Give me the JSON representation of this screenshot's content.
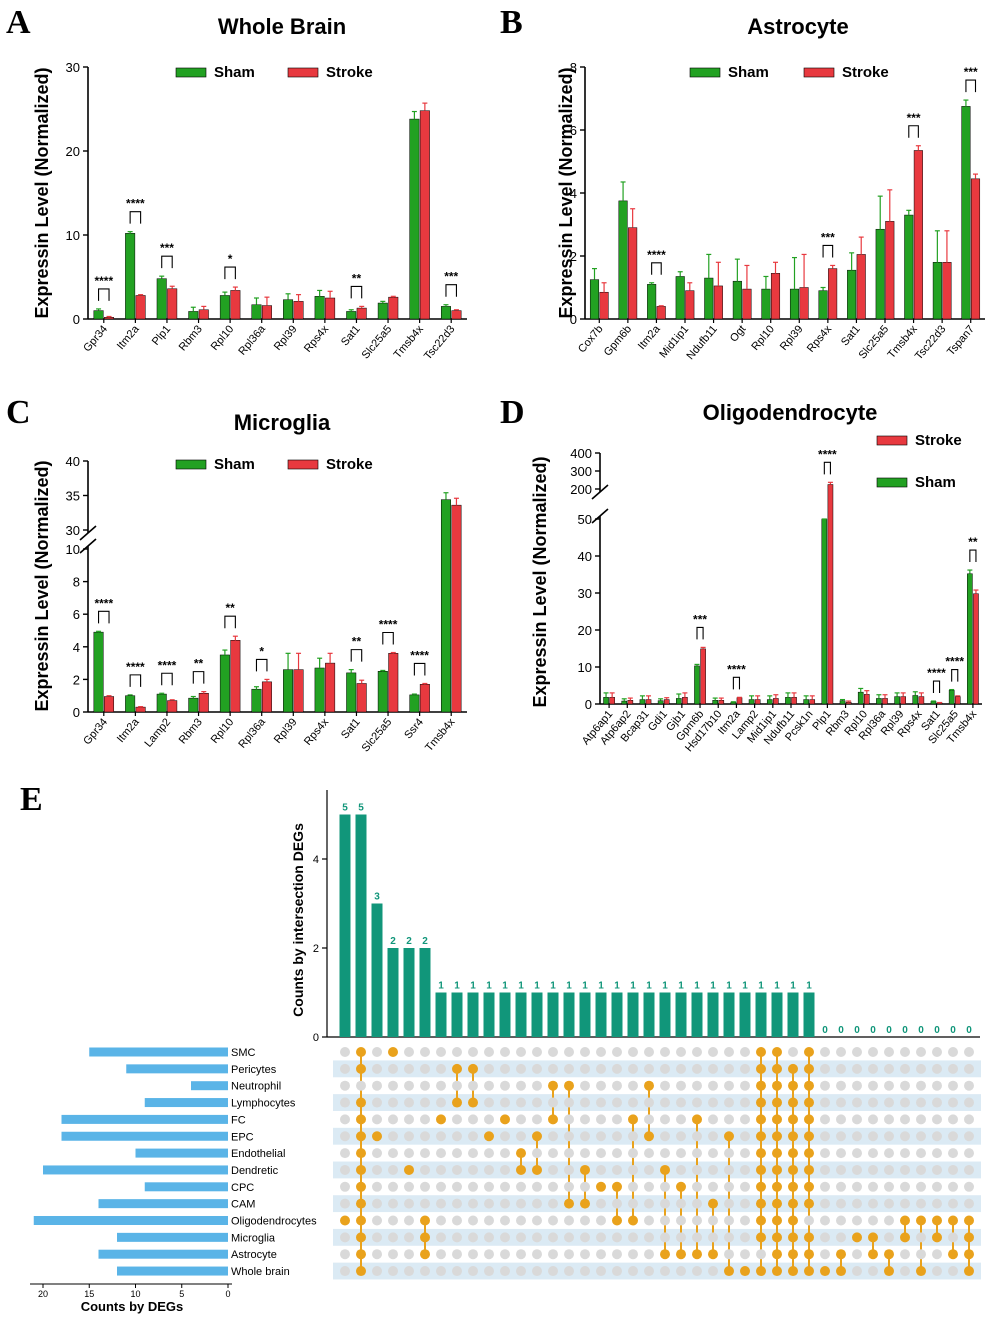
{
  "panels": {
    "A": "A",
    "B": "B",
    "C": "C",
    "D": "D",
    "E": "E"
  },
  "chart_data": [
    {
      "id": "A",
      "type": "bar",
      "title": "Whole Brain",
      "ylabel": "Expressin Level (Normalized)",
      "ylim": [
        0,
        30
      ],
      "yticks": [
        0,
        10,
        20,
        30
      ],
      "legend": [
        "Sham",
        "Stroke"
      ],
      "colors": {
        "Sham": "#22a122",
        "Stroke": "#e8393f"
      },
      "categories": [
        "Gpr34",
        "Itm2a",
        "Plp1",
        "Rbm3",
        "Rpl10",
        "Rpl36a",
        "Rpl39",
        "Rps4x",
        "Sat1",
        "Slc25a5",
        "Tmsb4x",
        "Tsc22d3"
      ],
      "series": [
        {
          "name": "Sham",
          "values": [
            1.0,
            10.2,
            4.8,
            0.9,
            2.8,
            1.7,
            2.3,
            2.7,
            0.9,
            1.9,
            23.8,
            1.5
          ],
          "errors": [
            0.2,
            0.2,
            0.3,
            0.5,
            0.4,
            0.8,
            0.7,
            0.7,
            0.2,
            0.2,
            0.9,
            0.2
          ]
        },
        {
          "name": "Stroke",
          "values": [
            0.2,
            2.8,
            3.6,
            1.1,
            3.4,
            1.6,
            2.1,
            2.5,
            1.3,
            2.6,
            24.8,
            1.0
          ],
          "errors": [
            0.1,
            0.1,
            0.3,
            0.4,
            0.4,
            1.0,
            0.8,
            0.8,
            0.2,
            0.1,
            0.9,
            0.1
          ]
        }
      ],
      "significance": [
        {
          "index": 0,
          "label": "****"
        },
        {
          "index": 1,
          "label": "****"
        },
        {
          "index": 2,
          "label": "***"
        },
        {
          "index": 4,
          "label": "*"
        },
        {
          "index": 8,
          "label": "**"
        },
        {
          "index": 11,
          "label": "***"
        }
      ]
    },
    {
      "id": "B",
      "type": "bar",
      "title": "Astrocyte",
      "ylabel": "Expressin Level (Normalized)",
      "ylim": [
        0,
        8
      ],
      "yticks": [
        0,
        2,
        4,
        6,
        8
      ],
      "legend": [
        "Sham",
        "Stroke"
      ],
      "colors": {
        "Sham": "#22a122",
        "Stroke": "#e8393f"
      },
      "categories": [
        "Cox7b",
        "Gpm6b",
        "Itm2a",
        "Mid1ip1",
        "Ndufb11",
        "Ogt",
        "Rpl10",
        "Rpl39",
        "Rps4x",
        "Sat1",
        "Slc25a5",
        "Tmsb4x",
        "Tsc22d3",
        "Tspan7"
      ],
      "series": [
        {
          "name": "Sham",
          "values": [
            1.25,
            3.75,
            1.1,
            1.35,
            1.3,
            1.2,
            0.95,
            0.95,
            0.9,
            1.55,
            2.85,
            3.3,
            1.8,
            6.75
          ],
          "errors": [
            0.35,
            0.6,
            0.05,
            0.15,
            0.75,
            0.7,
            0.4,
            1.0,
            0.1,
            0.55,
            1.05,
            0.15,
            1.0,
            0.2
          ]
        },
        {
          "name": "Stroke",
          "values": [
            0.85,
            2.9,
            0.4,
            0.9,
            1.05,
            0.95,
            1.45,
            1.0,
            1.6,
            2.05,
            3.1,
            5.35,
            1.8,
            4.45
          ],
          "errors": [
            0.3,
            0.6,
            0.02,
            0.25,
            0.75,
            0.75,
            0.35,
            1.05,
            0.1,
            0.55,
            1.0,
            0.15,
            1.0,
            0.15
          ]
        }
      ],
      "significance": [
        {
          "index": 2,
          "label": "****"
        },
        {
          "index": 8,
          "label": "***"
        },
        {
          "index": 11,
          "label": "***"
        },
        {
          "index": 13,
          "label": "***"
        }
      ]
    },
    {
      "id": "C",
      "type": "bar",
      "title": "Microglia",
      "ylabel": "Expressin Level (Normalized)",
      "ylim": [
        0,
        40
      ],
      "yticks": [
        0,
        2,
        4,
        6,
        8,
        10,
        30,
        35,
        40
      ],
      "axis_break": [
        10,
        30
      ],
      "legend": [
        "Sham",
        "Stroke"
      ],
      "colors": {
        "Sham": "#22a122",
        "Stroke": "#e8393f"
      },
      "categories": [
        "Gpr34",
        "Itm2a",
        "Lamp2",
        "Rbm3",
        "Rpl10",
        "Rpl36a",
        "Rpl39",
        "Rps4x",
        "Sat1",
        "Slc25a5",
        "Ssr4",
        "Tmsb4x"
      ],
      "series": [
        {
          "name": "Sham",
          "values": [
            4.9,
            1.0,
            1.1,
            0.85,
            3.5,
            1.4,
            2.6,
            2.7,
            2.4,
            2.5,
            1.05,
            34.4
          ],
          "errors": [
            0.05,
            0.05,
            0.05,
            0.1,
            0.3,
            0.15,
            1.0,
            0.6,
            0.2,
            0.05,
            0.05,
            1.0
          ]
        },
        {
          "name": "Stroke",
          "values": [
            0.95,
            0.3,
            0.7,
            1.15,
            4.4,
            1.85,
            2.6,
            3.0,
            1.75,
            3.6,
            1.7,
            33.6
          ],
          "errors": [
            0.05,
            0.03,
            0.05,
            0.1,
            0.25,
            0.15,
            1.0,
            0.6,
            0.2,
            0.05,
            0.05,
            1.0
          ]
        }
      ],
      "significance": [
        {
          "index": 0,
          "label": "****"
        },
        {
          "index": 1,
          "label": "****"
        },
        {
          "index": 2,
          "label": "****"
        },
        {
          "index": 3,
          "label": "**"
        },
        {
          "index": 4,
          "label": "**"
        },
        {
          "index": 5,
          "label": "*"
        },
        {
          "index": 8,
          "label": "**"
        },
        {
          "index": 9,
          "label": "****"
        },
        {
          "index": 10,
          "label": "****"
        }
      ]
    },
    {
      "id": "D",
      "type": "bar",
      "title": "Oligodendrocyte",
      "ylabel": "Expressin Level (Normalized)",
      "ylim": [
        0,
        400
      ],
      "yticks": [
        0,
        10,
        20,
        30,
        40,
        50,
        200,
        300,
        400
      ],
      "axis_break": [
        50,
        200
      ],
      "legend": [
        "Stroke",
        "Sham"
      ],
      "colors": {
        "Sham": "#22a122",
        "Stroke": "#e8393f"
      },
      "categories": [
        "Atp6ap1",
        "Atp6ap2",
        "Bcap31",
        "Gdi1",
        "Gjb1",
        "Gpm6b",
        "Hsd17b10",
        "Itm2a",
        "Lamp2",
        "Mid1ip1",
        "Ndufb11",
        "Pcsk1n",
        "Plp1",
        "Rbm3",
        "Rpl10",
        "Rpl36a",
        "Rpl39",
        "Rps4x",
        "Sat1",
        "Slc25a5",
        "Tmsb4x"
      ],
      "series": [
        {
          "name": "Sham",
          "values": [
            1.8,
            0.8,
            1.2,
            0.9,
            1.5,
            10.3,
            1.0,
            0.5,
            1.2,
            1.2,
            1.8,
            1.2,
            165,
            0.9,
            3.2,
            1.5,
            2.0,
            2.3,
            0.7,
            3.7,
            35.2
          ],
          "errors": [
            1.2,
            0.6,
            1.0,
            0.5,
            1.2,
            0.4,
            0.6,
            0.1,
            1.0,
            1.0,
            1.2,
            1.0,
            10,
            0.3,
            1.0,
            1.0,
            1.0,
            1.0,
            0.1,
            0.2,
            1.0
          ]
        },
        {
          "name": "Stroke",
          "values": [
            1.8,
            1.0,
            1.2,
            1.2,
            1.8,
            14.9,
            1.0,
            1.7,
            1.2,
            1.5,
            1.8,
            1.2,
            225,
            0.5,
            2.6,
            1.5,
            2.0,
            2.0,
            0.3,
            2.0,
            29.8
          ],
          "errors": [
            1.2,
            0.6,
            1.0,
            0.5,
            1.2,
            0.4,
            0.6,
            0.1,
            1.0,
            1.0,
            1.2,
            1.0,
            12,
            0.3,
            1.0,
            1.0,
            1.0,
            1.0,
            0.1,
            0.2,
            1.0
          ]
        }
      ],
      "significance": [
        {
          "index": 5,
          "label": "***"
        },
        {
          "index": 7,
          "label": "****"
        },
        {
          "index": 12,
          "label": "****"
        },
        {
          "index": 18,
          "label": "****"
        },
        {
          "index": 19,
          "label": "****"
        },
        {
          "index": 20,
          "label": "**"
        }
      ]
    },
    {
      "id": "E",
      "type": "bar",
      "subtype": "upset",
      "ylabel": "Counts by intersection DEGs",
      "ylim": [
        0,
        5.4
      ],
      "yticks": [
        0,
        2,
        4
      ],
      "xlabel": "Counts by DEGs",
      "set_xticks": [
        20,
        15,
        10,
        5,
        0
      ],
      "sets": [
        "SMC",
        "Pericytes",
        "Neutrophil",
        "Lymphocytes",
        "FC",
        "EPC",
        "Endothelial",
        "Dendretic",
        "CPC",
        "CAM",
        "Oligodendrocytes",
        "Microglia",
        "Astrocyte",
        "Whole brain"
      ],
      "set_sizes": [
        15,
        11,
        4,
        9,
        18,
        18,
        10,
        20,
        9,
        14,
        21,
        12,
        14,
        12
      ],
      "intersection_counts": [
        5,
        5,
        3,
        2,
        2,
        2,
        1,
        1,
        1,
        1,
        1,
        1,
        1,
        1,
        1,
        1,
        1,
        1,
        1,
        1,
        1,
        1,
        1,
        1,
        1,
        1,
        1,
        1,
        1,
        1,
        0,
        0,
        0,
        0,
        0,
        0,
        0,
        0,
        0,
        0
      ],
      "intersections": [
        [
          10
        ],
        [
          0,
          1,
          3,
          4,
          5,
          6,
          7,
          8,
          9,
          10,
          11,
          12,
          13
        ],
        [
          5
        ],
        [
          0
        ],
        [
          7
        ],
        [
          10,
          11,
          12
        ],
        [
          4
        ],
        [
          1,
          3
        ],
        [
          1,
          3
        ],
        [
          5
        ],
        [
          4
        ],
        [
          6,
          7
        ],
        [
          5,
          7
        ],
        [
          2,
          4
        ],
        [
          2,
          9
        ],
        [
          7,
          9
        ],
        [
          8
        ],
        [
          8,
          10
        ],
        [
          4,
          10
        ],
        [
          2,
          5
        ],
        [
          7,
          12
        ],
        [
          8,
          12
        ],
        [
          4,
          12
        ],
        [
          9,
          12
        ],
        [
          5,
          13
        ],
        [
          13
        ],
        [
          0,
          1,
          2,
          3,
          4,
          5,
          6,
          7,
          8,
          9,
          10,
          11,
          13
        ],
        [
          0,
          1,
          2,
          3,
          4,
          5,
          6,
          7,
          8,
          9,
          10,
          11,
          12,
          13
        ],
        [
          1,
          2,
          3,
          4,
          5,
          6,
          7,
          8,
          9,
          10,
          11,
          12,
          13
        ],
        [
          0,
          1,
          2,
          3,
          4,
          5,
          6,
          7,
          8,
          9,
          11,
          12,
          13
        ],
        [
          13
        ],
        [
          12,
          13
        ],
        [
          11
        ],
        [
          11,
          12
        ],
        [
          12,
          13
        ],
        [
          10,
          11
        ],
        [
          10,
          13
        ],
        [
          10,
          11
        ],
        [
          10,
          12
        ],
        [
          10,
          11,
          12,
          13
        ]
      ],
      "colors": {
        "bar": "#11967a",
        "dot": "#e9a21c",
        "set": "#5ab4e7",
        "stripe": "#dbeaf4",
        "empty": "#d9d9d9"
      }
    }
  ]
}
